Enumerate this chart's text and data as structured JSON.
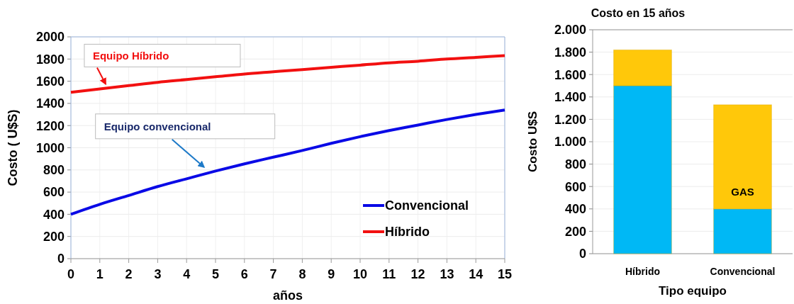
{
  "chart_data": [
    {
      "type": "line",
      "xlabel": "años",
      "ylabel": "Costo ( U$S)",
      "x": [
        0,
        1,
        2,
        3,
        4,
        5,
        6,
        7,
        8,
        9,
        10,
        11,
        12,
        13,
        14,
        15
      ],
      "series": [
        {
          "name": "Convencional",
          "color": "#0a0ae6",
          "values": [
            400,
            490,
            570,
            650,
            720,
            790,
            855,
            915,
            975,
            1040,
            1100,
            1155,
            1205,
            1255,
            1300,
            1340
          ]
        },
        {
          "name": "Híbrido",
          "color": "#f21010",
          "values": [
            1500,
            1530,
            1560,
            1590,
            1615,
            1640,
            1665,
            1685,
            1705,
            1725,
            1745,
            1765,
            1780,
            1800,
            1815,
            1830
          ]
        }
      ],
      "xlim": [
        0,
        15
      ],
      "xticks": [
        0,
        1,
        2,
        3,
        4,
        5,
        6,
        7,
        8,
        9,
        10,
        11,
        12,
        13,
        14,
        15
      ],
      "ylim": [
        0,
        2000
      ],
      "yticks": [
        0,
        200,
        400,
        600,
        800,
        1000,
        1200,
        1400,
        1600,
        1800,
        2000
      ],
      "grid": true,
      "legend": "bottom right",
      "annotations": [
        {
          "text": "Equipo Híbrido",
          "x": 1.2,
          "y": 1550
        },
        {
          "text": "Equipo convencional",
          "x": 4.6,
          "y": 800
        }
      ]
    },
    {
      "type": "bar",
      "title": "Costo en 15 años",
      "xlabel": "Tipo equipo",
      "ylabel": "Costo U$S",
      "categories": [
        "Híbrido",
        "Convencional"
      ],
      "stacked": true,
      "series": [
        {
          "color": "#00b8f5",
          "values": [
            1500,
            400
          ]
        },
        {
          "color": "#ffc80a",
          "values": [
            320,
            930
          ]
        }
      ],
      "ylim": [
        0,
        2000
      ],
      "yticks": [
        {
          "value": 0,
          "label": "0"
        },
        {
          "value": 200,
          "label": "200"
        },
        {
          "value": 400,
          "label": "400"
        },
        {
          "value": 600,
          "label": "600"
        },
        {
          "value": 800,
          "label": "800"
        },
        {
          "value": 1000,
          "label": "1.000"
        },
        {
          "value": 1200,
          "label": "1.200"
        },
        {
          "value": 1400,
          "label": "1.400"
        },
        {
          "value": 1600,
          "label": "1.600"
        },
        {
          "value": 1800,
          "label": "1.800"
        },
        {
          "value": 2000,
          "label": "2.000"
        }
      ],
      "grid": "y",
      "annotations": [
        "GAS"
      ]
    }
  ]
}
